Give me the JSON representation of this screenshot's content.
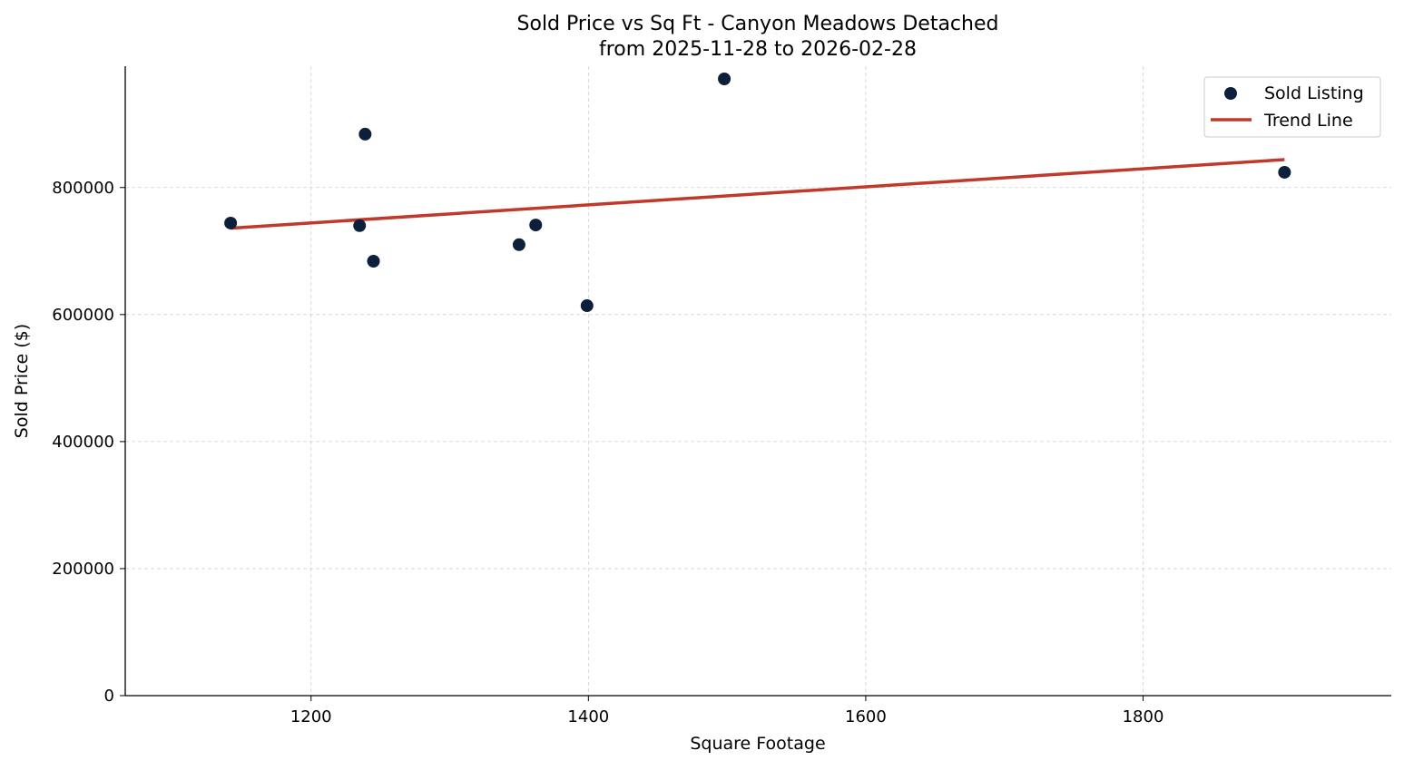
{
  "chart_data": {
    "type": "scatter",
    "title": "Sold Price vs Sq Ft - Canyon Meadows Detached",
    "subtitle": "from 2025-11-28 to 2026-02-28",
    "xlabel": "Square Footage",
    "ylabel": "Sold Price ($)",
    "xlim": [
      1066,
      1979
    ],
    "ylim": [
      0,
      991000
    ],
    "xticks": [
      1200,
      1400,
      1600,
      1800
    ],
    "yticks": [
      0,
      200000,
      400000,
      600000,
      800000
    ],
    "grid": true,
    "legend_position": "top-right",
    "series": [
      {
        "name": "Sold Listing",
        "type": "scatter",
        "color": "#0d1f3a",
        "points": [
          {
            "x": 1142,
            "y": 744000
          },
          {
            "x": 1235,
            "y": 740000
          },
          {
            "x": 1239,
            "y": 884000
          },
          {
            "x": 1245,
            "y": 684000
          },
          {
            "x": 1350,
            "y": 710000
          },
          {
            "x": 1362,
            "y": 741000
          },
          {
            "x": 1399,
            "y": 614000
          },
          {
            "x": 1498,
            "y": 971000
          },
          {
            "x": 1902,
            "y": 824000
          }
        ]
      },
      {
        "name": "Trend Line",
        "type": "line",
        "color": "#c0392b",
        "points": [
          {
            "x": 1142,
            "y": 736000
          },
          {
            "x": 1902,
            "y": 844000
          }
        ]
      }
    ]
  }
}
